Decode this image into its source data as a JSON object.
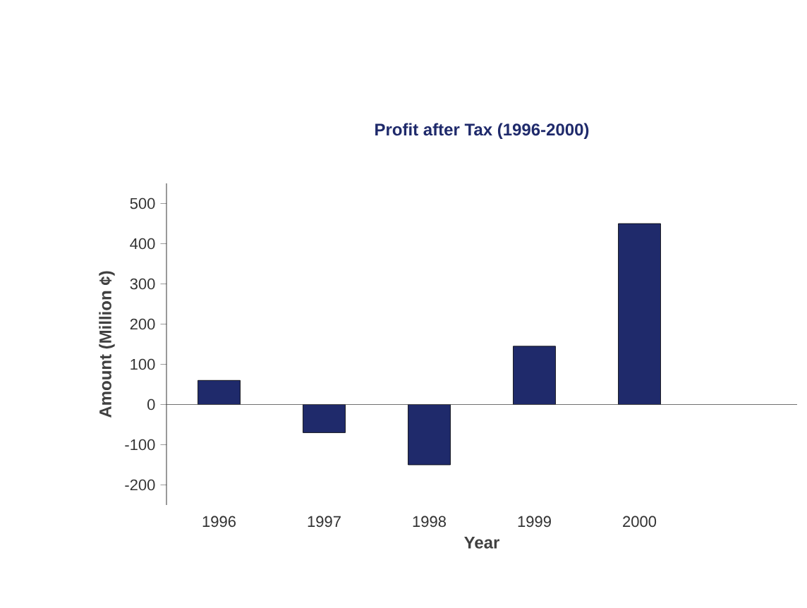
{
  "chart_data": {
    "type": "bar",
    "title": "Profit after Tax (1996-2000)",
    "xlabel": "Year",
    "ylabel": "Amount (Million ¢)",
    "categories": [
      "1996",
      "1997",
      "1998",
      "1999",
      "2000",
      null
    ],
    "values": [
      60,
      -70,
      -150,
      145,
      450,
      null
    ],
    "color": "#1f2a6b",
    "ylim": [
      -250,
      550
    ],
    "yticks": [
      -200,
      -100,
      0,
      100,
      200,
      300,
      400,
      500
    ]
  }
}
